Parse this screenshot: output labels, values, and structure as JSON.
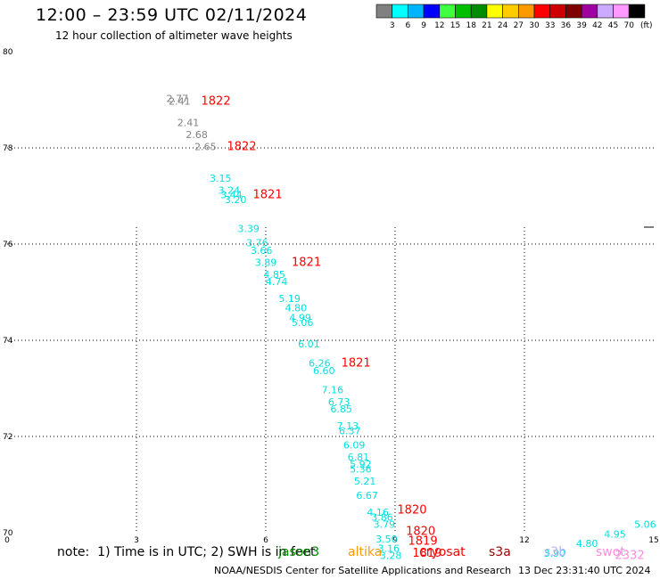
{
  "title": "12:00 – 23:59 UTC 02/11/2024",
  "subtitle": "12 hour collection of altimeter wave heights",
  "note": "note:  1) Time is in UTC; 2) SWH is in feet",
  "satellites": [
    {
      "name": "jason3",
      "color": "#008c00"
    },
    {
      "name": "altika",
      "color": "#ff9a00"
    },
    {
      "name": "cryosat",
      "color": "#ff0000"
    },
    {
      "name": "s3a",
      "color": "#a00000"
    },
    {
      "name": "s3b",
      "color": "#b4b4ff"
    },
    {
      "name": "swot",
      "color": "#ff8cdc"
    }
  ],
  "footer": {
    "org": "NOAA/NESDIS Center for Satellite Applications and Research",
    "timestamp": "13 Dec 23:31:40 UTC 2024"
  },
  "legend": {
    "unit": "(ft)",
    "bins": [
      {
        "label": "3",
        "color": "#808080"
      },
      {
        "label": "6",
        "color": "#00ffff"
      },
      {
        "label": "9",
        "color": "#00b4ff"
      },
      {
        "label": "12",
        "color": "#0000ff"
      },
      {
        "label": "15",
        "color": "#40ff40"
      },
      {
        "label": "18",
        "color": "#00c000"
      },
      {
        "label": "21",
        "color": "#008c00"
      },
      {
        "label": "24",
        "color": "#ffff00"
      },
      {
        "label": "27",
        "color": "#ffcc00"
      },
      {
        "label": "30",
        "color": "#ff9900"
      },
      {
        "label": "33",
        "color": "#ff0000"
      },
      {
        "label": "36",
        "color": "#cc0000"
      },
      {
        "label": "39",
        "color": "#800000"
      },
      {
        "label": "42",
        "color": "#a000a0"
      },
      {
        "label": "45",
        "color": "#ccaaff"
      },
      {
        "label": "70",
        "color": "#ff99ff"
      },
      {
        "label": "",
        "color": "#000000"
      }
    ]
  },
  "chart_data": {
    "type": "scatter",
    "title": "12:00 – 23:59 UTC 02/11/2024",
    "subtitle": "12 hour collection of altimeter wave heights",
    "xlim": [
      0,
      15
    ],
    "ylim": [
      70,
      80
    ],
    "x_ticks": [
      {
        "value": 0,
        "label": "0"
      },
      {
        "value": 3,
        "label": "3"
      },
      {
        "value": 6,
        "label": "6"
      },
      {
        "value": 9,
        "label": "9"
      },
      {
        "value": 12,
        "label": "12"
      },
      {
        "value": 15,
        "label": "15"
      }
    ],
    "y_ticks": [
      {
        "value": 70,
        "label": "70"
      },
      {
        "value": 72,
        "label": "72"
      },
      {
        "value": 74,
        "label": "74"
      },
      {
        "value": 76,
        "label": "76"
      },
      {
        "value": 78,
        "label": "78"
      },
      {
        "value": 80,
        "label": "80"
      }
    ],
    "grid": "dotted",
    "points": [
      {
        "x": 3.95,
        "y": 78.95,
        "v": "2.77",
        "c": "#808080"
      },
      {
        "x": 4.0,
        "y": 78.9,
        "v": "2.41",
        "c": "#808080"
      },
      {
        "x": 4.2,
        "y": 78.45,
        "v": "2.41",
        "c": "#808080"
      },
      {
        "x": 4.4,
        "y": 78.2,
        "v": "2.68",
        "c": "#808080"
      },
      {
        "x": 4.6,
        "y": 77.95,
        "v": "2.65",
        "c": "#808080"
      },
      {
        "x": 4.95,
        "y": 77.3,
        "v": "3.15",
        "c": "#00e0e0"
      },
      {
        "x": 5.15,
        "y": 77.05,
        "v": "3.24",
        "c": "#00e0e0"
      },
      {
        "x": 5.2,
        "y": 76.95,
        "v": "3.44",
        "c": "#00e0e0"
      },
      {
        "x": 5.3,
        "y": 76.85,
        "v": "3.20",
        "c": "#00e0e0"
      },
      {
        "x": 5.6,
        "y": 76.25,
        "v": "3.39",
        "c": "#00e0e0"
      },
      {
        "x": 5.8,
        "y": 75.95,
        "v": "3.76",
        "c": "#00e0e0"
      },
      {
        "x": 5.9,
        "y": 75.8,
        "v": "3.66",
        "c": "#00e0e0"
      },
      {
        "x": 6.0,
        "y": 75.55,
        "v": "3.89",
        "c": "#00e0e0"
      },
      {
        "x": 6.2,
        "y": 75.3,
        "v": "4.85",
        "c": "#00e0e0"
      },
      {
        "x": 6.25,
        "y": 75.15,
        "v": "4.74",
        "c": "#00e0e0"
      },
      {
        "x": 6.55,
        "y": 74.8,
        "v": "5.19",
        "c": "#00e0e0"
      },
      {
        "x": 6.7,
        "y": 74.6,
        "v": "4.80",
        "c": "#00e0e0"
      },
      {
        "x": 6.8,
        "y": 74.4,
        "v": "4.99",
        "c": "#00e0e0"
      },
      {
        "x": 6.85,
        "y": 74.3,
        "v": "5.06",
        "c": "#00e0e0"
      },
      {
        "x": 7.0,
        "y": 73.85,
        "v": "6.01",
        "c": "#00e0e0"
      },
      {
        "x": 7.25,
        "y": 73.45,
        "v": "6.26",
        "c": "#00e0e0"
      },
      {
        "x": 7.35,
        "y": 73.3,
        "v": "6.60",
        "c": "#00e0e0"
      },
      {
        "x": 7.55,
        "y": 72.9,
        "v": "7.16",
        "c": "#00e0e0"
      },
      {
        "x": 7.7,
        "y": 72.65,
        "v": "6.73",
        "c": "#00e0e0"
      },
      {
        "x": 7.75,
        "y": 72.5,
        "v": "6.85",
        "c": "#00e0e0"
      },
      {
        "x": 7.9,
        "y": 72.15,
        "v": "7.13",
        "c": "#00e0e0"
      },
      {
        "x": 7.95,
        "y": 72.05,
        "v": "6.37",
        "c": "#00e0e0"
      },
      {
        "x": 8.05,
        "y": 71.75,
        "v": "6.09",
        "c": "#00e0e0"
      },
      {
        "x": 8.15,
        "y": 71.5,
        "v": "6.81",
        "c": "#00e0e0"
      },
      {
        "x": 8.2,
        "y": 71.35,
        "v": "5.92",
        "c": "#00e0e0"
      },
      {
        "x": 8.2,
        "y": 71.25,
        "v": "5.36",
        "c": "#00e0e0"
      },
      {
        "x": 8.3,
        "y": 71.0,
        "v": "5.21",
        "c": "#00e0e0"
      },
      {
        "x": 8.35,
        "y": 70.7,
        "v": "6.67",
        "c": "#00e0e0"
      },
      {
        "x": 8.6,
        "y": 70.35,
        "v": "4.16",
        "c": "#00e0e0"
      },
      {
        "x": 8.7,
        "y": 70.25,
        "v": "3.86",
        "c": "#00e0e0"
      },
      {
        "x": 8.75,
        "y": 70.1,
        "v": "3.79",
        "c": "#00e0e0"
      },
      {
        "x": 8.8,
        "y": 69.8,
        "v": "3.50",
        "c": "#00e0e0"
      },
      {
        "x": 8.85,
        "y": 69.6,
        "v": "3.16",
        "c": "#00e0e0"
      },
      {
        "x": 8.9,
        "y": 69.45,
        "v": "3.28",
        "c": "#00e0e0"
      },
      {
        "x": 12.7,
        "y": 69.5,
        "v": "3.90",
        "c": "#00e0e0"
      },
      {
        "x": 13.45,
        "y": 69.7,
        "v": "4.80",
        "c": "#00e0e0"
      },
      {
        "x": 14.1,
        "y": 69.9,
        "v": "4.95",
        "c": "#00e0e0"
      },
      {
        "x": 14.8,
        "y": 70.1,
        "v": "5.06",
        "c": "#00e0e0"
      }
    ],
    "pass_labels": [
      {
        "x": 4.5,
        "y": 78.9,
        "text": "1822",
        "c": "#ff0000"
      },
      {
        "x": 5.1,
        "y": 77.95,
        "text": "1822",
        "c": "#ff0000"
      },
      {
        "x": 5.7,
        "y": 76.95,
        "text": "1821",
        "c": "#ff0000"
      },
      {
        "x": 6.6,
        "y": 75.55,
        "text": "1821",
        "c": "#ff0000"
      },
      {
        "x": 7.75,
        "y": 73.45,
        "text": "1821",
        "c": "#ff0000"
      },
      {
        "x": 9.05,
        "y": 70.4,
        "text": "1820",
        "c": "#ff0000"
      },
      {
        "x": 9.25,
        "y": 69.95,
        "text": "1820",
        "c": "#ff0000"
      },
      {
        "x": 9.3,
        "y": 69.75,
        "text": "1819",
        "c": "#ff0000"
      },
      {
        "x": 9.4,
        "y": 69.5,
        "text": "1819",
        "c": "#ff0000"
      },
      {
        "x": 14.1,
        "y": 69.45,
        "text": "2332",
        "c": "#ff8cdc"
      }
    ]
  }
}
